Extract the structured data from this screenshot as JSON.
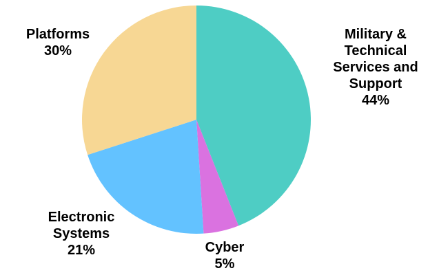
{
  "chart_data": {
    "type": "pie",
    "start_angle_deg": 0,
    "direction": "clockwise",
    "slices": [
      {
        "label_lines": [
          "Military &",
          "Technical",
          "Services and",
          "Support"
        ],
        "value_text": "44%",
        "value": 44,
        "color": "#4ECDC4"
      },
      {
        "label_lines": [
          "Cyber"
        ],
        "value_text": "5%",
        "value": 5,
        "color": "#DA72E0"
      },
      {
        "label_lines": [
          "Electronic",
          "Systems"
        ],
        "value_text": "21%",
        "value": 21,
        "color": "#63C2FF"
      },
      {
        "label_lines": [
          "Platforms"
        ],
        "value_text": "30%",
        "value": 30,
        "color": "#F7D794"
      }
    ]
  }
}
